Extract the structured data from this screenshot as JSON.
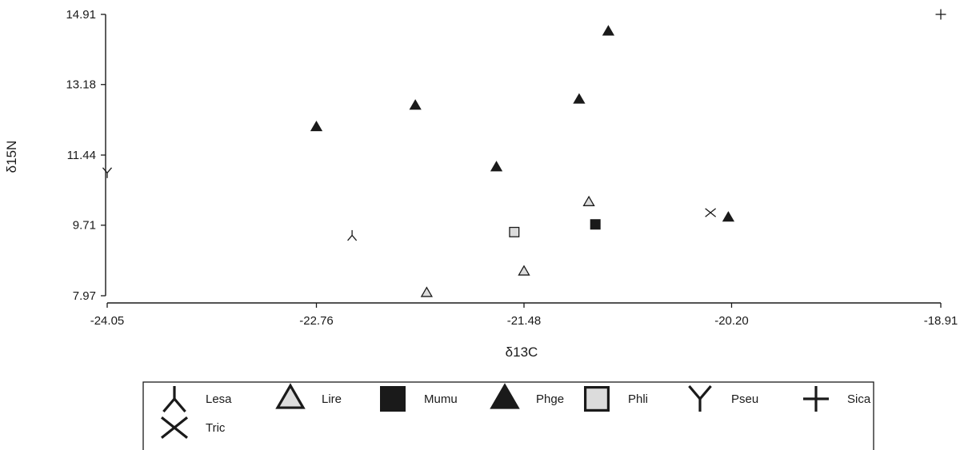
{
  "chart_data": {
    "type": "scatter",
    "title": "",
    "xlabel": "δ13C",
    "ylabel": "δ15N",
    "xlim": [
      -24.05,
      -18.91
    ],
    "ylim": [
      7.97,
      14.91
    ],
    "xticks": [
      "-24.05",
      "-22.76",
      "-21.48",
      "-20.20",
      "-18.91"
    ],
    "yticks": [
      "7.97",
      "9.71",
      "11.44",
      "13.18",
      "14.91"
    ],
    "grid": false,
    "legend": "bottom",
    "series": [
      {
        "name": "Lesa",
        "marker": "tri-down-lines",
        "points": [
          [
            -22.54,
            9.46
          ]
        ]
      },
      {
        "name": "Lire",
        "marker": "triangle-open",
        "points": [
          [
            -21.48,
            8.57
          ],
          [
            -21.08,
            10.28
          ],
          [
            -22.08,
            8.04
          ]
        ]
      },
      {
        "name": "Mumu",
        "marker": "square-filled",
        "points": [
          [
            -21.04,
            9.73
          ]
        ]
      },
      {
        "name": "Phge",
        "marker": "triangle-filled",
        "points": [
          [
            -22.76,
            12.13
          ],
          [
            -22.15,
            12.66
          ],
          [
            -21.65,
            11.14
          ],
          [
            -21.14,
            12.81
          ],
          [
            -20.96,
            14.49
          ],
          [
            -20.22,
            9.9
          ]
        ]
      },
      {
        "name": "Phli",
        "marker": "square-open",
        "points": [
          [
            -21.54,
            9.54
          ]
        ]
      },
      {
        "name": "Pseu",
        "marker": "tri-up-lines",
        "points": [
          [
            -24.05,
            11.0
          ]
        ]
      },
      {
        "name": "Sica",
        "marker": "plus",
        "points": [
          [
            -18.91,
            14.91
          ]
        ]
      },
      {
        "name": "Tric",
        "marker": "x",
        "points": [
          [
            -20.33,
            10.02
          ]
        ]
      }
    ]
  }
}
